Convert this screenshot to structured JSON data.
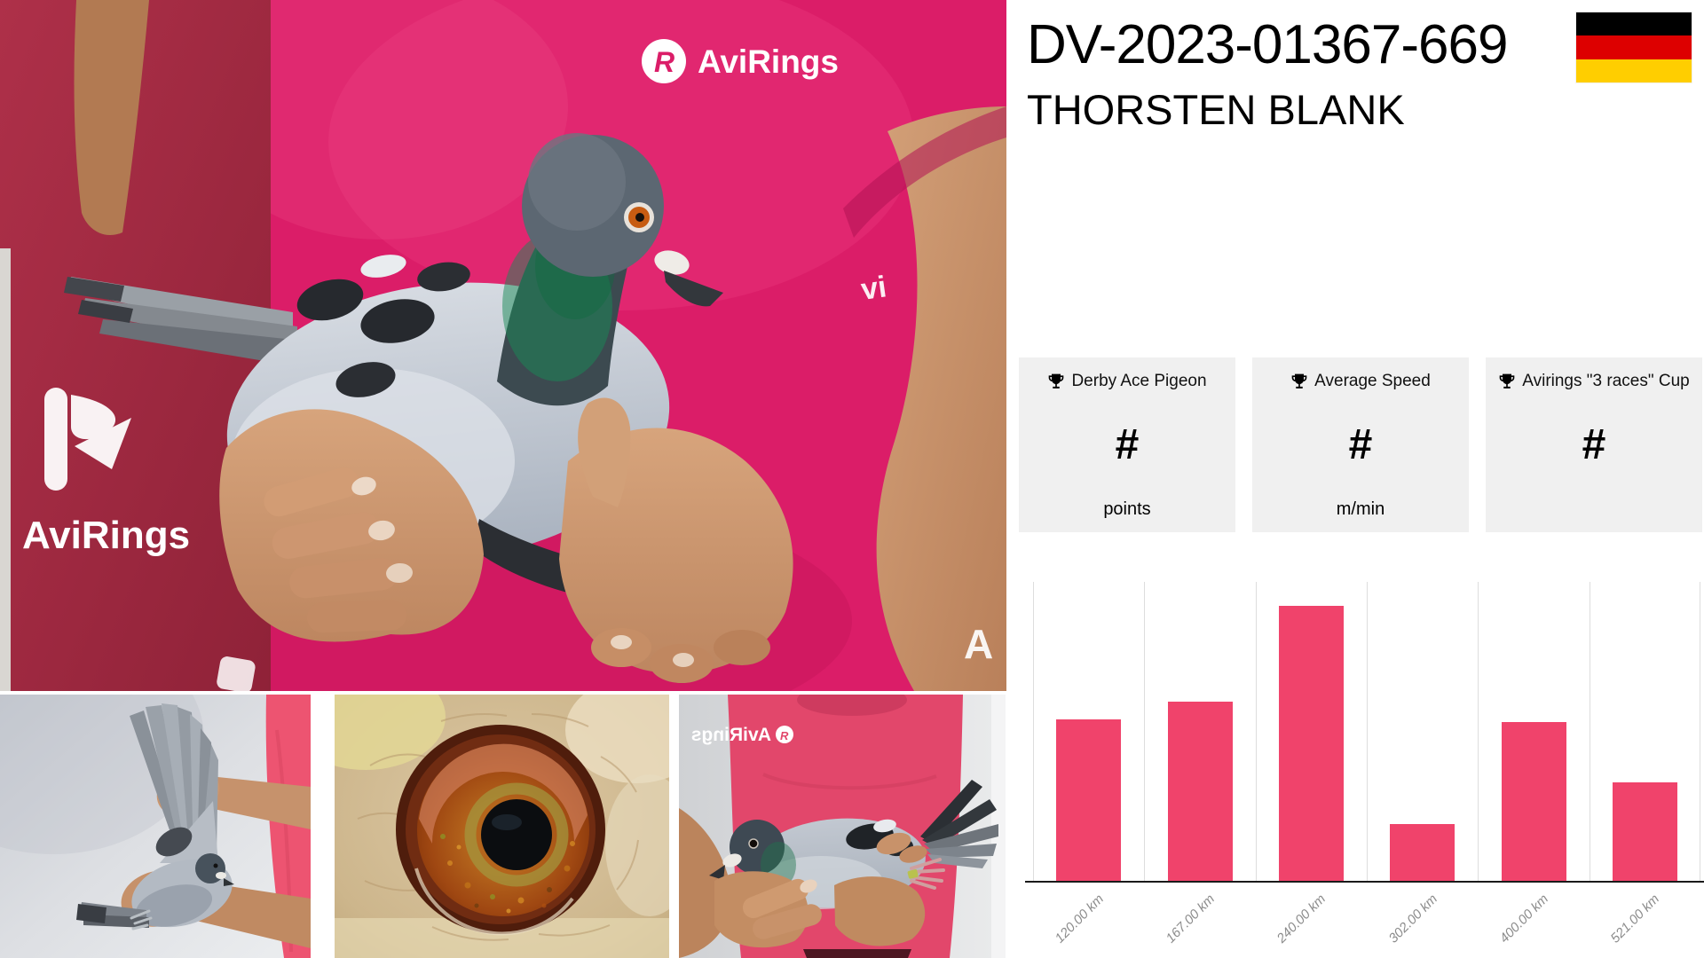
{
  "header": {
    "ring_id": "DV-2023-01367-669",
    "owner_name": "THORSTEN BLANK",
    "flag_icon": "germany-flag-icon"
  },
  "stats_cards": [
    {
      "icon": "trophy-icon",
      "label": "Derby Ace Pigeon",
      "value": "#",
      "unit": "points"
    },
    {
      "icon": "trophy-icon",
      "label": "Average Speed",
      "value": "#",
      "unit": "m/min"
    },
    {
      "icon": "trophy-icon",
      "label": "Avirings \"3 races\" Cup",
      "value": "#",
      "unit": ""
    }
  ],
  "chart_data": {
    "type": "bar",
    "categories": [
      "120.00 km",
      "167.00 km",
      "240.00 km",
      "302.00 km",
      "400.00 km",
      "521.00 km"
    ],
    "values": [
      54,
      60,
      92,
      19,
      53,
      33
    ],
    "title": "",
    "xlabel": "",
    "ylabel": "",
    "ylim": [
      0,
      100
    ],
    "y_axis_labels_visible": false,
    "grid": "vertical-only",
    "legend": "none",
    "bar_color": "#F0436B",
    "tick_label_style": "italic rotated 45deg gray"
  },
  "photos": {
    "main": {
      "description": "man in pink AviRings shirt holding a blue-bar racing pigeon in both hands in front of a crimson AviRings banner",
      "shirt_logo_text": "AviRings",
      "banner_logo_text": "AviRings",
      "logo_mark_letter": "R",
      "shirt_print_fragment_right": "vi",
      "shirt_print_fragment_bottom": "A"
    },
    "wing": {
      "description": "pigeon held with one wing fanned open upward"
    },
    "eye": {
      "description": "close-up of pigeon eye with orange-red iris and black pupil"
    },
    "hold": {
      "description": "pigeon held on its side showing wing markings and tail",
      "shirt_logo_text_mirrored": "AviRings"
    }
  },
  "colors": {
    "accent_pink": "#F0436B",
    "card_background": "#F0F0F0",
    "flag_black": "#000000",
    "flag_red": "#DD0000",
    "flag_gold": "#FFCE00",
    "text": "#000000",
    "tick_gray": "#8C8C8C"
  }
}
